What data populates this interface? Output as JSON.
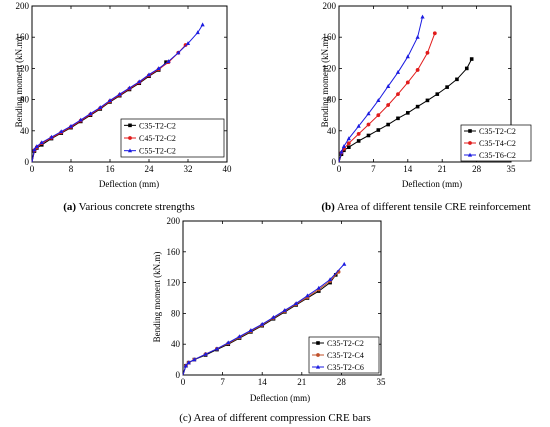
{
  "chart_data": [
    {
      "type": "line",
      "caption_letter": "(a)",
      "caption_text": " Various concrete strengths",
      "xlabel": "Deflection (mm)",
      "ylabel": "Bending moment (kN.m)",
      "xlim": [
        0,
        40
      ],
      "ylim": [
        0,
        200
      ],
      "xticks": [
        0,
        8,
        16,
        24,
        32,
        40
      ],
      "yticks": [
        0,
        40,
        80,
        120,
        160,
        200
      ],
      "legend_position": "bottom-right",
      "series": [
        {
          "name": "C35-T2-C2",
          "color": "#000000",
          "marker": "square",
          "x": [
            0,
            0.5,
            1,
            2,
            4,
            6,
            8,
            10,
            12,
            14,
            16,
            18,
            20,
            22,
            24,
            26,
            27.5
          ],
          "y": [
            0,
            14,
            18,
            22,
            30,
            37,
            44,
            52,
            60,
            68,
            77,
            85,
            93,
            101,
            110,
            118,
            128
          ]
        },
        {
          "name": "C45-T2-C2",
          "color": "#e11b1b",
          "marker": "circle",
          "x": [
            0,
            0.5,
            1,
            2,
            4,
            6,
            8,
            10,
            12,
            14,
            16,
            18,
            20,
            22,
            24,
            26,
            28,
            30,
            31.5
          ],
          "y": [
            0,
            15,
            19,
            24,
            31,
            38,
            45,
            53,
            61,
            69,
            78,
            86,
            94,
            102,
            111,
            119,
            128,
            140,
            150
          ]
        },
        {
          "name": "C55-T2-C2",
          "color": "#1b1be1",
          "marker": "triangle",
          "x": [
            0,
            0.5,
            1,
            2,
            4,
            6,
            8,
            10,
            12,
            14,
            16,
            18,
            20,
            22,
            24,
            26,
            28,
            30,
            32,
            34,
            35
          ],
          "y": [
            0,
            16,
            20,
            25,
            32,
            39,
            46,
            54,
            62,
            70,
            79,
            87,
            95,
            103,
            112,
            120,
            129,
            140,
            152,
            166,
            176
          ]
        }
      ]
    },
    {
      "type": "line",
      "caption_letter": "(b)",
      "caption_text": " Area of different tensile CRE reinforcement",
      "xlabel": "Deflection (mm)",
      "ylabel": "Bending moment (kN.m)",
      "xlim": [
        0,
        35
      ],
      "ylim": [
        0,
        200
      ],
      "xticks": [
        0,
        7,
        14,
        21,
        28,
        35
      ],
      "yticks": [
        0,
        40,
        80,
        120,
        160,
        200
      ],
      "legend_position": "bottom-right",
      "series": [
        {
          "name": "C35-T2-C2",
          "color": "#000000",
          "marker": "square",
          "x": [
            0,
            0.5,
            1,
            2,
            4,
            6,
            8,
            10,
            12,
            14,
            16,
            18,
            20,
            22,
            24,
            26,
            27
          ],
          "y": [
            0,
            10,
            15,
            19,
            27,
            34,
            41,
            48,
            56,
            63,
            71,
            79,
            87,
            96,
            106,
            120,
            132
          ]
        },
        {
          "name": "C35-T4-C2",
          "color": "#e11b1b",
          "marker": "circle",
          "x": [
            0,
            0.5,
            1,
            2,
            4,
            6,
            8,
            10,
            12,
            14,
            16,
            18,
            19.5
          ],
          "y": [
            0,
            12,
            17,
            24,
            36,
            48,
            60,
            73,
            87,
            102,
            118,
            140,
            165
          ]
        },
        {
          "name": "C35-T6-C2",
          "color": "#1b1be1",
          "marker": "triangle",
          "x": [
            0,
            0.5,
            1,
            2,
            4,
            6,
            8,
            10,
            12,
            14,
            16,
            17
          ],
          "y": [
            0,
            13,
            20,
            30,
            46,
            62,
            79,
            97,
            115,
            135,
            160,
            186
          ]
        }
      ]
    },
    {
      "type": "line",
      "caption_letter": "",
      "caption_text": "(c) Area of different compression CRE bars",
      "xlabel": "Deflection (mm)",
      "ylabel": "Bending moment (kN.m)",
      "xlim": [
        0,
        35
      ],
      "ylim": [
        0,
        200
      ],
      "xticks": [
        0,
        7,
        14,
        21,
        28,
        35
      ],
      "yticks": [
        0,
        40,
        80,
        120,
        160,
        200
      ],
      "legend_position": "bottom-right",
      "series": [
        {
          "name": "C35-T2-C2",
          "color": "#000000",
          "marker": "square",
          "x": [
            0,
            0.5,
            1,
            2,
            4,
            6,
            8,
            10,
            12,
            14,
            16,
            18,
            20,
            22,
            24,
            26,
            27
          ],
          "y": [
            0,
            12,
            16,
            20,
            26,
            33,
            40,
            48,
            56,
            64,
            73,
            82,
            91,
            100,
            109,
            120,
            130
          ]
        },
        {
          "name": "C35-T2-C4",
          "color": "#c0502a",
          "marker": "circle",
          "x": [
            0,
            0.5,
            1,
            2,
            4,
            6,
            8,
            10,
            12,
            14,
            16,
            18,
            20,
            22,
            24,
            26,
            27.5
          ],
          "y": [
            0,
            12,
            16,
            20,
            27,
            34,
            41,
            49,
            57,
            65,
            74,
            83,
            92,
            101,
            111,
            122,
            134
          ]
        },
        {
          "name": "C35-T2-C6",
          "color": "#1b1be1",
          "marker": "triangle",
          "x": [
            0,
            0.5,
            1,
            2,
            4,
            6,
            8,
            10,
            12,
            14,
            16,
            18,
            20,
            22,
            24,
            26,
            28.5
          ],
          "y": [
            0,
            12,
            16,
            20,
            27,
            34,
            42,
            50,
            58,
            66,
            75,
            84,
            93,
            103,
            113,
            124,
            144
          ]
        }
      ]
    }
  ]
}
